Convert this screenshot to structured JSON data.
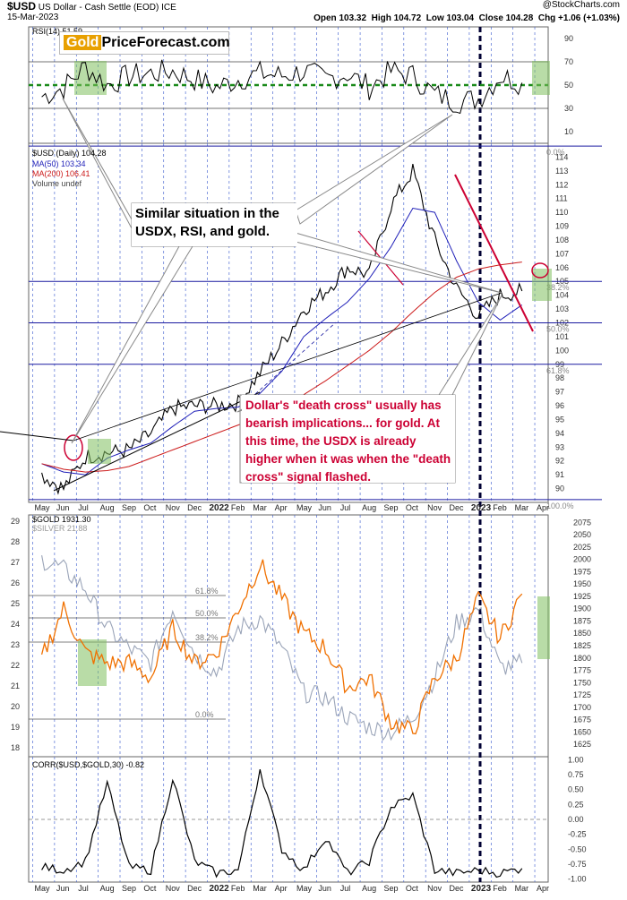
{
  "header": {
    "symbol": "$USD",
    "name": "US Dollar - Cash Settle (EOD)",
    "exchange": "ICE",
    "date": "15-Mar-2023",
    "open": "Open 103.32",
    "high": "High 104.72",
    "low": "Low 103.04",
    "close": "Close 104.28",
    "change": "Chg +1.06 (+1.03%)",
    "watermark": "@StockCharts.com"
  },
  "logo": {
    "part1": "Gold",
    "part2": "PriceForecast.com"
  },
  "callouts": {
    "similar": "Similar situation in the USDX, RSI, and gold.",
    "death_cross": "Dollar's \"death cross\" usually has bearish implications... for gold. At this time, the USDX is already higher when it was when the \"death cross\" signal flashed."
  },
  "colors": {
    "usd": "#000000",
    "ma50": "#1f1fb8",
    "ma200": "#cc1a1a",
    "gold": "#f07000",
    "silver": "#9aa4b8",
    "annotation_red": "#cc0033",
    "highlight_green": "#7fbf5f",
    "fib_blue": "#1a1aa0",
    "rsi_dash": "#1a8a1a"
  },
  "x_axis": {
    "months": [
      "May",
      "Jun",
      "Jul",
      "Aug",
      "Sep",
      "Oct",
      "Nov",
      "Dec",
      "2022",
      "Feb",
      "Mar",
      "Apr",
      "May",
      "Jun",
      "Jul",
      "Aug",
      "Sep",
      "Oct",
      "Nov",
      "Dec",
      "2023",
      "Feb",
      "Mar",
      "Apr"
    ],
    "bold": [
      "2022",
      "2023"
    ],
    "month_labels_repeated": [
      [
        "May",
        "Jun",
        "Jul",
        "Aug",
        "Sep",
        "Oct",
        "Nov",
        "Dec",
        "2022",
        "Feb",
        "Mar",
        "Apr",
        "May",
        "Jun",
        "Jul",
        "Aug",
        "Sep",
        "Oct",
        "Nov",
        "Dec",
        "2023",
        "Feb",
        "Mar",
        "Apr"
      ]
    ]
  },
  "chart_data": [
    {
      "type": "line",
      "panel": "RSI",
      "legend": "RSI(14) 51.59",
      "ylim": [
        0,
        100
      ],
      "ticks": [
        10,
        30,
        50,
        70,
        90
      ],
      "levels": [
        30,
        50,
        70
      ],
      "x": [
        "2021-05",
        "2021-06",
        "2021-07",
        "2021-08",
        "2021-09",
        "2021-10",
        "2021-11",
        "2021-12",
        "2022-01",
        "2022-02",
        "2022-03",
        "2022-04",
        "2022-05",
        "2022-06",
        "2022-07",
        "2022-08",
        "2022-09",
        "2022-10",
        "2022-11",
        "2022-12",
        "2023-01",
        "2023-02",
        "2023-03"
      ],
      "series": [
        {
          "name": "RSI(14)",
          "values": [
            40,
            48,
            66,
            50,
            58,
            60,
            62,
            55,
            48,
            55,
            60,
            58,
            62,
            55,
            60,
            48,
            62,
            58,
            42,
            36,
            38,
            58,
            52
          ]
        }
      ]
    },
    {
      "type": "line",
      "panel": "USD",
      "legend": [
        "$USD (Daily) 104.28",
        "MA(50) 103.34",
        "MA(200) 106.41",
        "Volume undef"
      ],
      "ylim": [
        89,
        115
      ],
      "ticks": [
        90,
        91,
        92,
        93,
        94,
        95,
        96,
        97,
        98,
        99,
        100,
        101,
        102,
        103,
        104,
        105,
        106,
        107,
        108,
        109,
        110,
        111,
        112,
        113,
        114
      ],
      "fib_levels": [
        {
          "label": "0.0%",
          "value": 114.8
        },
        {
          "label": "38.2%",
          "value": 105.0
        },
        {
          "label": "50.0%",
          "value": 102.0
        },
        {
          "label": "61.8%",
          "value": 99.0
        },
        {
          "label": "100.0%",
          "value": 89.2
        }
      ],
      "x": [
        "2021-05",
        "2021-06",
        "2021-07",
        "2021-08",
        "2021-09",
        "2021-10",
        "2021-11",
        "2021-12",
        "2022-01",
        "2022-02",
        "2022-03",
        "2022-04",
        "2022-05",
        "2022-06",
        "2022-07",
        "2022-08",
        "2022-09",
        "2022-10",
        "2022-11",
        "2022-12",
        "2023-01",
        "2023-02",
        "2023-03"
      ],
      "series": [
        {
          "name": "$USD",
          "values": [
            91.0,
            90.0,
            92.3,
            92.6,
            92.8,
            94.0,
            95.8,
            96.0,
            96.0,
            96.2,
            98.4,
            100.5,
            103.0,
            104.3,
            106.0,
            105.5,
            110.5,
            113.0,
            108.0,
            104.5,
            102.5,
            104.0,
            104.3
          ]
        },
        {
          "name": "MA(50)",
          "values": [
            91.8,
            91.2,
            91.0,
            92.2,
            92.8,
            93.3,
            94.5,
            95.6,
            95.8,
            95.9,
            96.9,
            98.5,
            101.0,
            102.3,
            103.5,
            105.2,
            107.5,
            110.3,
            110.0,
            106.5,
            103.5,
            102.2,
            103.3
          ]
        },
        {
          "name": "MA(200)",
          "values": [
            91.8,
            91.4,
            91.2,
            91.3,
            91.6,
            92.2,
            92.8,
            93.4,
            94.0,
            94.6,
            95.2,
            95.9,
            96.8,
            97.8,
            98.9,
            100.0,
            101.3,
            102.8,
            104.2,
            105.3,
            105.9,
            106.2,
            106.4
          ]
        }
      ]
    },
    {
      "type": "line",
      "panel": "GOLD",
      "legend": [
        "$GOLD 1931.30",
        "$SILVER 21.88"
      ],
      "ylim": [
        1600,
        2090
      ],
      "ticks": [
        1625,
        1650,
        1675,
        1700,
        1725,
        1750,
        1775,
        1800,
        1825,
        1850,
        1875,
        1900,
        1925,
        1950,
        1975,
        2000,
        2025,
        2050,
        2075
      ],
      "left_ticks": [
        18,
        19,
        20,
        21,
        22,
        23,
        24,
        25,
        26,
        27,
        28,
        29
      ],
      "fib_labels": [
        "61.8%",
        "50.0%",
        "38.2%",
        "0.0%"
      ],
      "x": [
        "2021-05",
        "2021-06",
        "2021-07",
        "2021-08",
        "2021-09",
        "2021-10",
        "2021-11",
        "2021-12",
        "2022-01",
        "2022-02",
        "2022-03",
        "2022-04",
        "2022-05",
        "2022-06",
        "2022-07",
        "2022-08",
        "2022-09",
        "2022-10",
        "2022-11",
        "2022-12",
        "2023-01",
        "2023-02",
        "2023-03"
      ],
      "series": [
        {
          "name": "$GOLD",
          "values": [
            1800,
            1900,
            1810,
            1790,
            1790,
            1760,
            1860,
            1790,
            1810,
            1900,
            1990,
            1920,
            1850,
            1820,
            1740,
            1760,
            1670,
            1650,
            1760,
            1800,
            1920,
            1840,
            1930
          ]
        },
        {
          "name": "$SILVER",
          "values": [
            2000,
            1980,
            1940,
            1860,
            1820,
            1790,
            1900,
            1810,
            1770,
            1860,
            1880,
            1820,
            1730,
            1720,
            1680,
            1660,
            1650,
            1680,
            1760,
            1870,
            1900,
            1780,
            1790
          ]
        }
      ]
    },
    {
      "type": "line",
      "panel": "CORR",
      "legend": "CORR($USD,$GOLD,30) -0.82",
      "ylim": [
        -1.05,
        1.05
      ],
      "ticks": [
        -1.0,
        -0.75,
        -0.5,
        -0.25,
        0.0,
        0.25,
        0.5,
        0.75,
        1.0
      ],
      "tick_labels": [
        "-1.00",
        "-0.75",
        "-0.50",
        "-0.25",
        "0.00",
        "0.25",
        "0.50",
        "0.75",
        "1.00"
      ],
      "x": [
        "2021-05",
        "2021-06",
        "2021-07",
        "2021-08",
        "2021-09",
        "2021-10",
        "2021-11",
        "2021-12",
        "2022-01",
        "2022-02",
        "2022-03",
        "2022-04",
        "2022-05",
        "2022-06",
        "2022-07",
        "2022-08",
        "2022-09",
        "2022-10",
        "2022-11",
        "2022-12",
        "2023-01",
        "2023-02",
        "2023-03"
      ],
      "series": [
        {
          "name": "CORR",
          "values": [
            -0.8,
            -0.85,
            -0.7,
            0.6,
            -0.8,
            -0.85,
            0.7,
            -0.7,
            -0.9,
            -0.85,
            0.85,
            -0.5,
            -0.85,
            -0.3,
            -0.9,
            -0.7,
            0.2,
            0.4,
            -0.85,
            -0.9,
            -0.85,
            -0.9,
            -0.82
          ]
        }
      ]
    }
  ]
}
